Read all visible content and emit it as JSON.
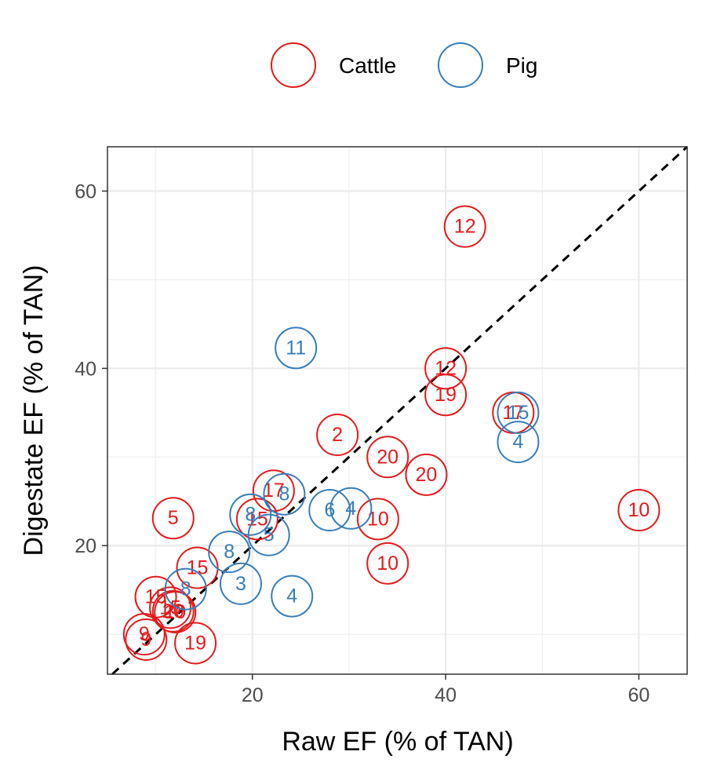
{
  "chart_data": {
    "type": "scatter",
    "title": "",
    "xlabel": "Raw EF (% of TAN)",
    "ylabel": "Digestate EF (% of TAN)",
    "xlim": [
      5,
      65
    ],
    "ylim": [
      5.5,
      65
    ],
    "xticks": [
      20,
      40,
      60
    ],
    "yticks": [
      20,
      40,
      60
    ],
    "grid": true,
    "reference_line": {
      "type": "identity",
      "style": "dashed",
      "color": "#000000"
    },
    "legend_position": "top",
    "series": [
      {
        "name": "Cattle",
        "color": "#E41A1C",
        "points": [
          {
            "x": 42.0,
            "y": 56.0,
            "label": "12"
          },
          {
            "x": 40.0,
            "y": 40.0,
            "label": "12"
          },
          {
            "x": 40.0,
            "y": 37.0,
            "label": "19"
          },
          {
            "x": 47.0,
            "y": 35.0,
            "label": "17"
          },
          {
            "x": 28.8,
            "y": 32.5,
            "label": "2"
          },
          {
            "x": 34.0,
            "y": 30.0,
            "label": "20"
          },
          {
            "x": 38.0,
            "y": 28.0,
            "label": "20"
          },
          {
            "x": 22.2,
            "y": 26.2,
            "label": "17"
          },
          {
            "x": 11.8,
            "y": 23.1,
            "label": "5"
          },
          {
            "x": 33.0,
            "y": 23.0,
            "label": "10"
          },
          {
            "x": 60.0,
            "y": 24.0,
            "label": "10"
          },
          {
            "x": 34.0,
            "y": 18.0,
            "label": "10"
          },
          {
            "x": 20.5,
            "y": 23.0,
            "label": "15"
          },
          {
            "x": 14.3,
            "y": 17.5,
            "label": "15"
          },
          {
            "x": 10.0,
            "y": 14.2,
            "label": "15"
          },
          {
            "x": 11.5,
            "y": 13.0,
            "label": "15"
          },
          {
            "x": 11.8,
            "y": 12.6,
            "label": "20"
          },
          {
            "x": 12.0,
            "y": 12.5,
            "label": "10"
          },
          {
            "x": 8.8,
            "y": 10.0,
            "label": "9"
          },
          {
            "x": 9.0,
            "y": 9.4,
            "label": "9"
          },
          {
            "x": 14.1,
            "y": 9.0,
            "label": "19"
          }
        ]
      },
      {
        "name": "Pig",
        "color": "#377EB8",
        "points": [
          {
            "x": 24.5,
            "y": 42.3,
            "label": "11"
          },
          {
            "x": 47.5,
            "y": 35.0,
            "label": "15"
          },
          {
            "x": 47.5,
            "y": 31.7,
            "label": "4"
          },
          {
            "x": 23.3,
            "y": 25.8,
            "label": "8"
          },
          {
            "x": 28.0,
            "y": 24.0,
            "label": "6"
          },
          {
            "x": 30.2,
            "y": 24.2,
            "label": "4"
          },
          {
            "x": 19.8,
            "y": 23.5,
            "label": "8"
          },
          {
            "x": 21.7,
            "y": 21.2,
            "label": "5"
          },
          {
            "x": 17.6,
            "y": 19.3,
            "label": "8"
          },
          {
            "x": 13.1,
            "y": 15.1,
            "label": "8"
          },
          {
            "x": 18.8,
            "y": 15.7,
            "label": "3"
          },
          {
            "x": 24.1,
            "y": 14.3,
            "label": "4"
          }
        ]
      }
    ]
  },
  "legend": {
    "items": [
      {
        "label": "Cattle",
        "color": "#E41A1C"
      },
      {
        "label": "Pig",
        "color": "#377EB8"
      }
    ]
  }
}
